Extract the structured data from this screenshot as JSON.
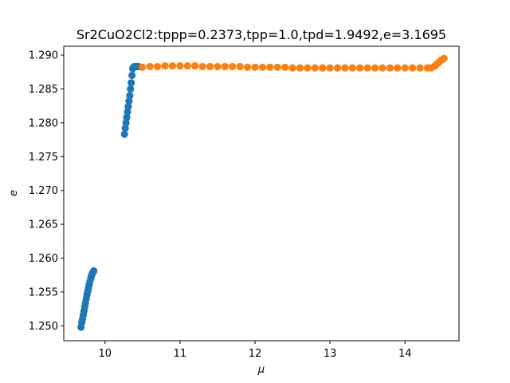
{
  "chart_data": {
    "type": "scatter",
    "title": "Sr2CuO2Cl2:tppp=0.2373,tpp=1.0,tpd=1.9492,e=3.1695",
    "xlabel": "μ",
    "ylabel": "e",
    "xlim": [
      9.45,
      14.72
    ],
    "ylim": [
      1.2478,
      1.2913
    ],
    "xticks": [
      10,
      11,
      12,
      13,
      14
    ],
    "xtick_labels": [
      "10",
      "11",
      "12",
      "13",
      "14"
    ],
    "yticks": [
      1.25,
      1.255,
      1.26,
      1.265,
      1.27,
      1.275,
      1.28,
      1.285,
      1.29
    ],
    "ytick_labels": [
      "1.250",
      "1.255",
      "1.260",
      "1.265",
      "1.270",
      "1.275",
      "1.280",
      "1.285",
      "1.290"
    ],
    "grid": false,
    "legend": "none",
    "series": [
      {
        "color": "#1f77b4",
        "x": [
          9.68,
          9.69,
          9.7,
          9.71,
          9.72,
          9.73,
          9.74,
          9.75,
          9.76,
          9.77,
          9.78,
          9.79,
          9.8,
          9.81,
          9.82,
          9.83,
          9.84,
          9.85,
          10.26,
          10.27,
          10.28,
          10.29,
          10.3,
          10.31,
          10.32,
          10.33,
          10.34,
          10.35,
          10.36,
          10.37,
          10.38,
          10.39,
          10.4,
          10.42,
          10.45
        ],
        "y": [
          1.2498,
          1.2505,
          1.251,
          1.2516,
          1.2522,
          1.2528,
          1.2534,
          1.254,
          1.2546,
          1.2551,
          1.2556,
          1.2561,
          1.2566,
          1.257,
          1.2574,
          1.2577,
          1.2579,
          1.2581,
          1.2783,
          1.2792,
          1.28,
          1.2808,
          1.2816,
          1.2824,
          1.2832,
          1.284,
          1.285,
          1.2859,
          1.287,
          1.288,
          1.2882,
          1.2883,
          1.2883,
          1.2883,
          1.2883
        ]
      },
      {
        "color": "#ff7f0e",
        "x": [
          10.5,
          10.6,
          10.7,
          10.8,
          10.9,
          11.0,
          11.1,
          11.2,
          11.3,
          11.4,
          11.5,
          11.6,
          11.7,
          11.8,
          11.9,
          12.0,
          12.1,
          12.2,
          12.3,
          12.4,
          12.5,
          12.6,
          12.7,
          12.8,
          12.9,
          13.0,
          13.1,
          13.2,
          13.3,
          13.4,
          13.5,
          13.6,
          13.7,
          13.8,
          13.9,
          14.0,
          14.1,
          14.2,
          14.3,
          14.35,
          14.4,
          14.43,
          14.46,
          14.49,
          14.52
        ],
        "y": [
          1.2882,
          1.2883,
          1.2883,
          1.2884,
          1.2884,
          1.2884,
          1.2884,
          1.2884,
          1.2883,
          1.2883,
          1.2883,
          1.2883,
          1.2883,
          1.2883,
          1.2882,
          1.2882,
          1.2882,
          1.2882,
          1.2882,
          1.2882,
          1.2881,
          1.2881,
          1.2881,
          1.2881,
          1.2881,
          1.2881,
          1.2881,
          1.2881,
          1.2881,
          1.2881,
          1.2881,
          1.2881,
          1.2881,
          1.2881,
          1.2881,
          1.2881,
          1.2881,
          1.2881,
          1.2881,
          1.2881,
          1.2884,
          1.2887,
          1.289,
          1.2893,
          1.2895
        ]
      }
    ]
  }
}
